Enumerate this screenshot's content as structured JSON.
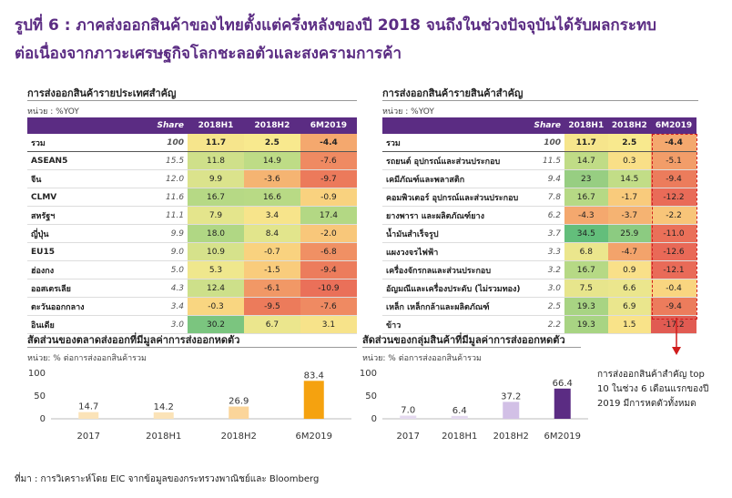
{
  "title": {
    "line1": "รูปที่ 6 : ภาคส่งออกสินค้าของไทยตั้งแต่ครึ่งหลังของปี 2018 จนถึงในช่วงปัจจุบันได้รับผลกระทบ",
    "line2": "ต่อเนื่องจากภาวะเศรษฐกิจโลกชะลอตัวและสงครามการค้า"
  },
  "left_table": {
    "title": "การส่งออกสินค้ารายประเทศสำคัญ",
    "unit": "หน่วย : %YOY",
    "headers": [
      "",
      "Share",
      "2018H1",
      "2018H2",
      "6M2019"
    ],
    "rows": [
      {
        "name": "รวม",
        "share": "100",
        "v": [
          "11.7",
          "2.5",
          "-4.4"
        ],
        "c": [
          "#f6e58c",
          "#f8e98e",
          "#f4a86e"
        ]
      },
      {
        "name": "ASEAN5",
        "share": "15.5",
        "v": [
          "11.8",
          "14.9",
          "-7.6"
        ],
        "c": [
          "#cfe08a",
          "#bedc86",
          "#ef8a62"
        ]
      },
      {
        "name": "จีน",
        "share": "12.0",
        "v": [
          "9.9",
          "-3.6",
          "-9.7"
        ],
        "c": [
          "#dbe38c",
          "#f5b472",
          "#ec7a5b"
        ]
      },
      {
        "name": "CLMV",
        "share": "11.6",
        "v": [
          "16.7",
          "16.6",
          "-0.9"
        ],
        "c": [
          "#b6d985",
          "#b8da85",
          "#f9d27f"
        ]
      },
      {
        "name": "สหรัฐฯ",
        "share": "11.1",
        "v": [
          "7.9",
          "3.4",
          "17.4"
        ],
        "c": [
          "#e4e58c",
          "#f7e48b",
          "#b3d884"
        ]
      },
      {
        "name": "ญี่ปุ่น",
        "share": "9.9",
        "v": [
          "18.0",
          "8.4",
          "-2.0"
        ],
        "c": [
          "#b0d784",
          "#e2e58c",
          "#f8c77a"
        ]
      },
      {
        "name": "EU15",
        "share": "9.0",
        "v": [
          "10.9",
          "-0.7",
          "-6.8"
        ],
        "c": [
          "#d6e28b",
          "#f9d27f",
          "#f09064"
        ]
      },
      {
        "name": "ฮ่องกง",
        "share": "5.0",
        "v": [
          "5.3",
          "-1.5",
          "-9.4"
        ],
        "c": [
          "#efe78d",
          "#f9cc7c",
          "#ec7c5c"
        ]
      },
      {
        "name": "ออสเตรเลีย",
        "share": "4.3",
        "v": [
          "12.4",
          "-6.1",
          "-10.9"
        ],
        "c": [
          "#cde08a",
          "#f19866",
          "#ea7059"
        ]
      },
      {
        "name": "ตะวันออกกลาง",
        "share": "3.4",
        "v": [
          "-0.3",
          "-9.5",
          "-7.6"
        ],
        "c": [
          "#f9d681",
          "#ec7b5b",
          "#ef8a62"
        ]
      },
      {
        "name": "อินเดีย",
        "share": "3.0",
        "v": [
          "30.2",
          "6.7",
          "3.1"
        ],
        "c": [
          "#7bc57f",
          "#ebe68d",
          "#f7e38a"
        ]
      }
    ]
  },
  "right_table": {
    "title": "การส่งออกสินค้ารายสินค้าสำคัญ",
    "unit": "หน่วย : %YOY",
    "headers": [
      "",
      "Share",
      "2018H1",
      "2018H2",
      "6M2019"
    ],
    "rows": [
      {
        "name": "รวม",
        "share": "100",
        "v": [
          "11.7",
          "2.5",
          "-4.4"
        ],
        "c": [
          "#f6e58c",
          "#f8e98e",
          "#f4a86e"
        ]
      },
      {
        "name": "รถยนต์ อุปกรณ์และส่วนประกอบ",
        "share": "11.5",
        "v": [
          "14.7",
          "0.3",
          "-5.1"
        ],
        "c": [
          "#c0dc86",
          "#f9df87",
          "#f29d69"
        ]
      },
      {
        "name": "เคมีภัณฑ์และพลาสติก",
        "share": "9.4",
        "v": [
          "23",
          "14.5",
          "-9.4"
        ],
        "c": [
          "#97ce82",
          "#c2dd87",
          "#ec7c5c"
        ]
      },
      {
        "name": "คอมพิวเตอร์ อุปกรณ์และส่วนประกอบ",
        "share": "7.8",
        "v": [
          "16.7",
          "-1.7",
          "-12.2"
        ],
        "c": [
          "#b6d985",
          "#f9cb7c",
          "#e96b58"
        ]
      },
      {
        "name": "ยางพารา และผลิตภัณฑ์ยาง",
        "share": "6.2",
        "v": [
          "-4.3",
          "-3.7",
          "-2.2"
        ],
        "c": [
          "#f4a86e",
          "#f5b372",
          "#f8c579"
        ]
      },
      {
        "name": "น้ำมันสำเร็จรูป",
        "share": "3.7",
        "v": [
          "34.5",
          "25.9",
          "-11.0"
        ],
        "c": [
          "#63be7b",
          "#8ccb81",
          "#ea7059"
        ]
      },
      {
        "name": "แผงวงจรไฟฟ้า",
        "share": "3.3",
        "v": [
          "6.8",
          "-4.7",
          "-12.6"
        ],
        "c": [
          "#ebe68d",
          "#f3a36b",
          "#e96957"
        ]
      },
      {
        "name": "เครื่องจักรกลและส่วนประกอบ",
        "share": "3.2",
        "v": [
          "16.7",
          "0.9",
          "-12.1"
        ],
        "c": [
          "#b6d985",
          "#f9e089",
          "#e96b58"
        ]
      },
      {
        "name": "อัญมณีและเครื่องประดับ (ไม่รวมทอง)",
        "share": "3.0",
        "v": [
          "7.5",
          "6.6",
          "-0.4"
        ],
        "c": [
          "#e7e58c",
          "#ebe68d",
          "#f9d580"
        ]
      },
      {
        "name": "เหล็ก เหล็กกล้าและผลิตภัณฑ์",
        "share": "2.5",
        "v": [
          "19.3",
          "6.9",
          "-9.4"
        ],
        "c": [
          "#a8d483",
          "#eae68d",
          "#ec7c5c"
        ]
      },
      {
        "name": "ข้าว",
        "share": "2.2",
        "v": [
          "19.3",
          "1.5",
          "-17.2"
        ],
        "c": [
          "#a8d483",
          "#f9e389",
          "#e15b52"
        ]
      }
    ]
  },
  "note": {
    "lines": [
      "การส่งออกสินค้าสำคัญ top",
      "10 ในช่วง 6 เดือนแรกของปี",
      "2019 มีการหดตัวทั้งหมด"
    ]
  },
  "source": "ที่มา : การวิเคราะห์โดย EIC จากข้อมูลของกระทรวงพาณิชย์และ Bloomberg",
  "chart_data": [
    {
      "type": "bar",
      "title": "สัดส่วนของตลาดส่งออกที่มีมูลค่าการส่งออกหดตัว",
      "unit": "หน่วย: % ต่อการส่งออกสินค้ารวม",
      "categories": [
        "2017",
        "2018H1",
        "2018H2",
        "6M2019"
      ],
      "values": [
        14.7,
        14.2,
        26.9,
        83.4
      ],
      "value_labels": [
        "14.7",
        "14.2",
        "26.9",
        "83.4"
      ],
      "colors": [
        "#fbe3b8",
        "#fbe3b8",
        "#fbd59a",
        "#f5a20f"
      ],
      "ylim": [
        0,
        100
      ],
      "yticks": [
        "0",
        "50",
        "100"
      ]
    },
    {
      "type": "bar",
      "title": "สัดส่วนของกลุ่มสินค้าที่มีมูลค่าการส่งออกหดตัว",
      "unit": "หน่วย: % ต่อการส่งออกสินค้ารวม",
      "categories": [
        "2017",
        "2018H1",
        "2018H2",
        "6M2019"
      ],
      "values": [
        7.0,
        6.4,
        37.2,
        66.4
      ],
      "value_labels": [
        "7.0",
        "6.4",
        "37.2",
        "66.4"
      ],
      "colors": [
        "#e4d9ef",
        "#e4d9ef",
        "#d2c0e6",
        "#5b2c83"
      ],
      "ylim": [
        0,
        100
      ],
      "yticks": [
        "0",
        "50",
        "100"
      ]
    }
  ]
}
